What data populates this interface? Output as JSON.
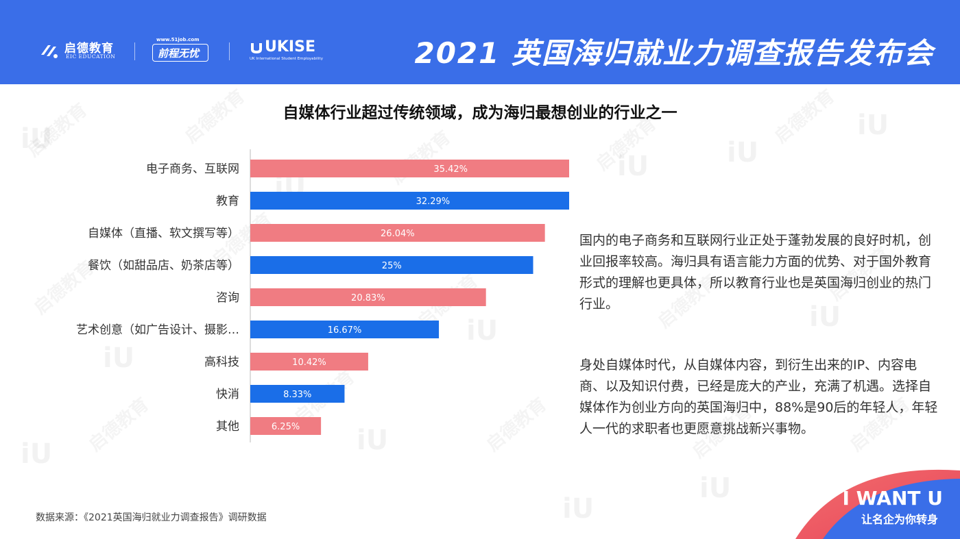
{
  "header": {
    "title": "2021 英国海归就业力调查报告发布会",
    "logos": {
      "eic_cn": "启德教育",
      "eic_en": "EIC EDUCATION",
      "job51_url": "www.51job.com",
      "job51_name": "前程无忧",
      "ukise_name": "UKISE",
      "ukise_sub": "UK International Student Employability"
    }
  },
  "watermark": {
    "cn": "启德教育",
    "en": "EIC EDUCATION",
    "mark": "iU"
  },
  "chart_data": {
    "type": "bar",
    "orientation": "horizontal",
    "title": "自媒体行业超过传统领域，成为海归最想创业的行业之一",
    "categories": [
      "电子商务、互联网",
      "教育",
      "自媒体（直播、软文撰写等）",
      "餐饮（如甜品店、奶茶店等）",
      "咨询",
      "艺术创意（如广告设计、摄影…",
      "高科技",
      "快消",
      "其他"
    ],
    "values": [
      35.42,
      32.29,
      26.04,
      25,
      20.83,
      16.67,
      10.42,
      8.33,
      6.25
    ],
    "value_labels": [
      "35.42%",
      "32.29%",
      "26.04%",
      "25%",
      "20.83%",
      "16.67%",
      "10.42%",
      "8.33%",
      "6.25%"
    ],
    "colors": [
      "#f07c82",
      "#1a6ee8"
    ],
    "xlim": [
      0,
      40
    ],
    "grid": false,
    "legend": "none"
  },
  "text": {
    "para1": "国内的电子商务和互联网行业正处于蓬勃发展的良好时机，创业回报率较高。海归具有语言能力方面的优势、对于国外教育形式的理解也更具体，所以教育行业也是英国海归创业的热门行业。",
    "para2": "身处自媒体时代，从自媒体内容，到衍生出来的IP、内容电商、以及知识付费，已经是庞大的产业，充满了机遇。选择自媒体作为创业方向的英国海归中，88%是90后的年轻人，年轻人一代的求职者也更愿意挑战新兴事物。",
    "source": "数据来源：《2021英国海归就业力调查报告》调研数据"
  },
  "badge": {
    "line1": "I WANT U",
    "line2": "让名企为你转身"
  }
}
